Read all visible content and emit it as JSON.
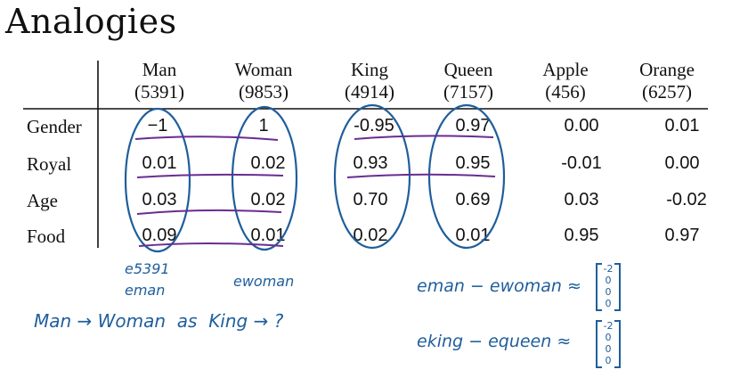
{
  "title": "Analogies",
  "columns": [
    {
      "word": "Man",
      "index": "(5391)"
    },
    {
      "word": "Woman",
      "index": "(9853)"
    },
    {
      "word": "King",
      "index": "(4914)"
    },
    {
      "word": "Queen",
      "index": "(7157)"
    },
    {
      "word": "Apple",
      "index": "(456)"
    },
    {
      "word": "Orange",
      "index": "(6257)"
    }
  ],
  "rows": [
    {
      "label": "Gender",
      "values": [
        "−1",
        "1",
        "-0.95",
        "0.97",
        "0.00",
        "0.01"
      ]
    },
    {
      "label": "Royal",
      "values": [
        "0.01",
        "0.02",
        "0.93",
        "0.95",
        "-0.01",
        "0.00"
      ]
    },
    {
      "label": "Age",
      "values": [
        "0.03",
        "0.02",
        "0.70",
        "0.69",
        "0.03",
        "-0.02"
      ]
    },
    {
      "label": "Food",
      "values": [
        "0.09",
        "0.01",
        "0.02",
        "0.01",
        "0.95",
        "0.97"
      ]
    }
  ],
  "handwriting": {
    "e5391": "e5391",
    "eman": "eman",
    "ewoman": "ewoman",
    "analogy": "Man → Woman  as  King → ?",
    "eq1_left": "eman − ewoman ≈",
    "eq2_left": "eking − equeen ≈",
    "vec1": [
      "-2",
      "0",
      "0",
      "0"
    ],
    "vec2": [
      "-2",
      "0",
      "0",
      "0"
    ]
  },
  "ink_color": "#1f5e9c",
  "underline_color": "#6a2c91"
}
